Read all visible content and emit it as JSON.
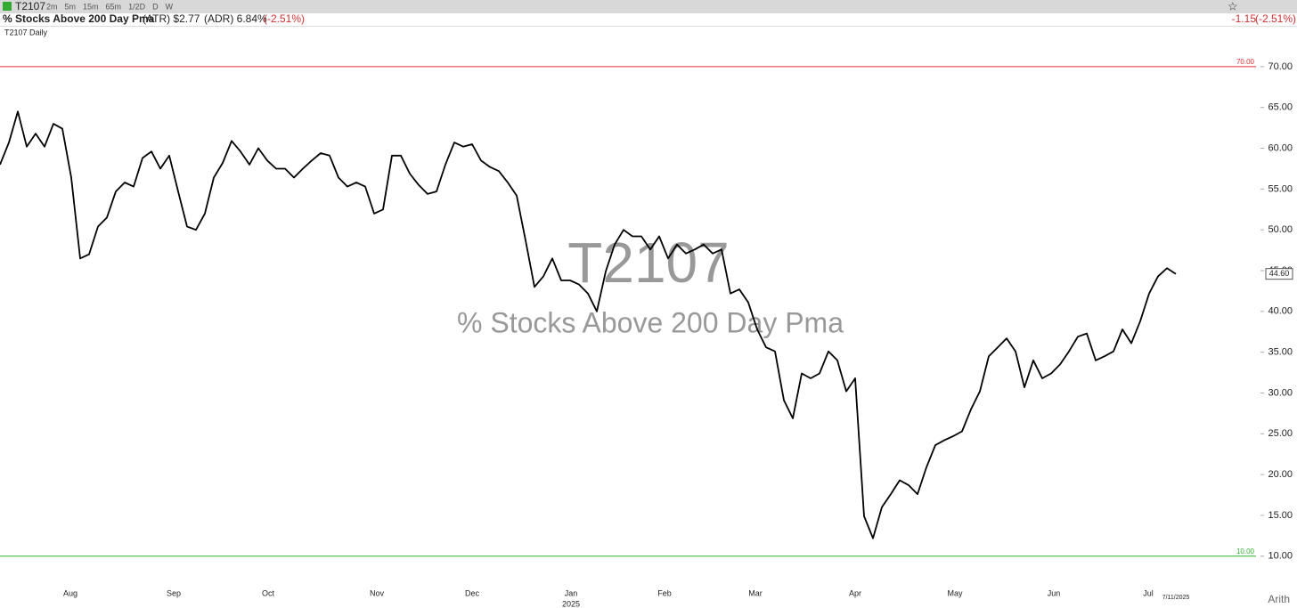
{
  "toolbar": {
    "symbol": "T2107",
    "intervals": [
      "2m",
      "5m",
      "15m",
      "65m",
      "1/2D",
      "D",
      "W"
    ]
  },
  "header": {
    "title": "% Stocks Above 200 Day Pma",
    "atr": "(ATR) $2.77",
    "adr": "(ADR) 6.84%",
    "change_pct": "(-2.51%)",
    "right_change": "-1.15",
    "right_change_pct": "(-2.51%)"
  },
  "chart_data": {
    "type": "line",
    "title": "T2107 Daily",
    "watermark": "T2107",
    "watermark_subtitle": "% Stocks Above 200 Day Pma",
    "series": [
      {
        "name": "T2107",
        "color": "#000000",
        "values": [
          58.0,
          60.7,
          64.5,
          60.2,
          61.8,
          60.2,
          63,
          62.4,
          56.4,
          46.5,
          47,
          50.4,
          51.5,
          54.7,
          55.8,
          55.3,
          58.8,
          59.6,
          57.5,
          59.1,
          54.7,
          50.4,
          50,
          52,
          56.4,
          58.2,
          60.9,
          59.6,
          58,
          60,
          58.5,
          57.5,
          57.5,
          56.4,
          57.5,
          58.5,
          59.4,
          59.1,
          56.4,
          55.3,
          55.8,
          55.3,
          52,
          52.5,
          59.1,
          59.1,
          56.9,
          55.5,
          54.4,
          54.7,
          58,
          60.7,
          60.2,
          60.5,
          58.5,
          57.7,
          57.2,
          55.8,
          54.2,
          48.7,
          43,
          44.3,
          46.5,
          43.8,
          43.8,
          43.3,
          42.2,
          40,
          44.9,
          48.2,
          50,
          49.2,
          49.2,
          47.6,
          49.2,
          46.5,
          48.2,
          47.1,
          47.6,
          48.2,
          47.1,
          47.6,
          42.2,
          42.7,
          41.1,
          37.8,
          35.6,
          35.1,
          29.1,
          26.9,
          32.4,
          31.8,
          32.4,
          35.1,
          34,
          30.2,
          31.8,
          14.9,
          12.2,
          16,
          17.6,
          19.3,
          18.7,
          17.6,
          20.9,
          23.6,
          24.2,
          24.7,
          25.3,
          28,
          30.2,
          34.5,
          35.6,
          36.7,
          35.1,
          30.7,
          34,
          31.8,
          32.4,
          33.5,
          35.1,
          36.9,
          37.3,
          34,
          34.5,
          35.1,
          37.8,
          36.1,
          38.8,
          42.2,
          44.3,
          45.3,
          44.6
        ]
      }
    ],
    "last_label": "44.60",
    "last_date_label": "7/11/2025",
    "xlim": [
      0,
      141
    ],
    "xticks": [
      {
        "value": 7.9,
        "label": "Aug"
      },
      {
        "value": 19.5,
        "label": "Sep"
      },
      {
        "value": 30.1,
        "label": "Oct"
      },
      {
        "value": 42.3,
        "label": "Nov"
      },
      {
        "value": 53,
        "label": "Dec"
      },
      {
        "value": 64.1,
        "label": "Jan"
      },
      {
        "value": 74.6,
        "label": "Feb"
      },
      {
        "value": 84.8,
        "label": "Mar"
      },
      {
        "value": 96,
        "label": "Apr"
      },
      {
        "value": 107.2,
        "label": "May"
      },
      {
        "value": 118.3,
        "label": "Jun"
      },
      {
        "value": 128.9,
        "label": "Jul"
      }
    ],
    "x_sublabels": [
      {
        "value": 64.1,
        "label": "2025"
      }
    ],
    "ylim": [
      6.7,
      74.9
    ],
    "yticks": [
      {
        "value": 10,
        "label": "10.00"
      },
      {
        "value": 15,
        "label": "15.00"
      },
      {
        "value": 20,
        "label": "20.00"
      },
      {
        "value": 25,
        "label": "25.00"
      },
      {
        "value": 30,
        "label": "30.00"
      },
      {
        "value": 35,
        "label": "35.00"
      },
      {
        "value": 40,
        "label": "40.00"
      },
      {
        "value": 45,
        "label": "45.00"
      },
      {
        "value": 50,
        "label": "50.00"
      },
      {
        "value": 55,
        "label": "55.00"
      },
      {
        "value": 60,
        "label": "60.00"
      },
      {
        "value": 65,
        "label": "65.00"
      },
      {
        "value": 70,
        "label": "70.00"
      }
    ],
    "reference_lines": [
      {
        "value": 70,
        "label": "70.00",
        "color": "#e03030"
      },
      {
        "value": 10,
        "label": "10.00",
        "color": "#30b030"
      }
    ],
    "scale_label": "Arith",
    "grid": false
  }
}
